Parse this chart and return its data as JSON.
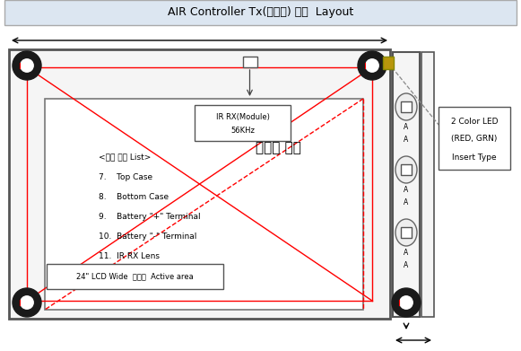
{
  "title": "AIR Controller Tx(모니터) 기구  Layout",
  "title_bg": "#dce6f1",
  "bg_color": "#ffffff",
  "led_text": [
    "2 Color LED",
    "(RED, GRN)",
    "Insert Type"
  ],
  "ir_module_box_text": [
    "IR RX(Module)",
    "56KHz"
  ],
  "sensor_text": "초음파 센서",
  "list_title": "<기구 부품 List>",
  "list_items": [
    "7.    Top Case",
    "8.    Bottom Case",
    "9.    Battery \"+\" Terminal",
    "10.  Battery \"-\" Terminal",
    "11.  IR RX Lens"
  ],
  "lcd_label": "24\" LCD Wide  모니터  Active area"
}
